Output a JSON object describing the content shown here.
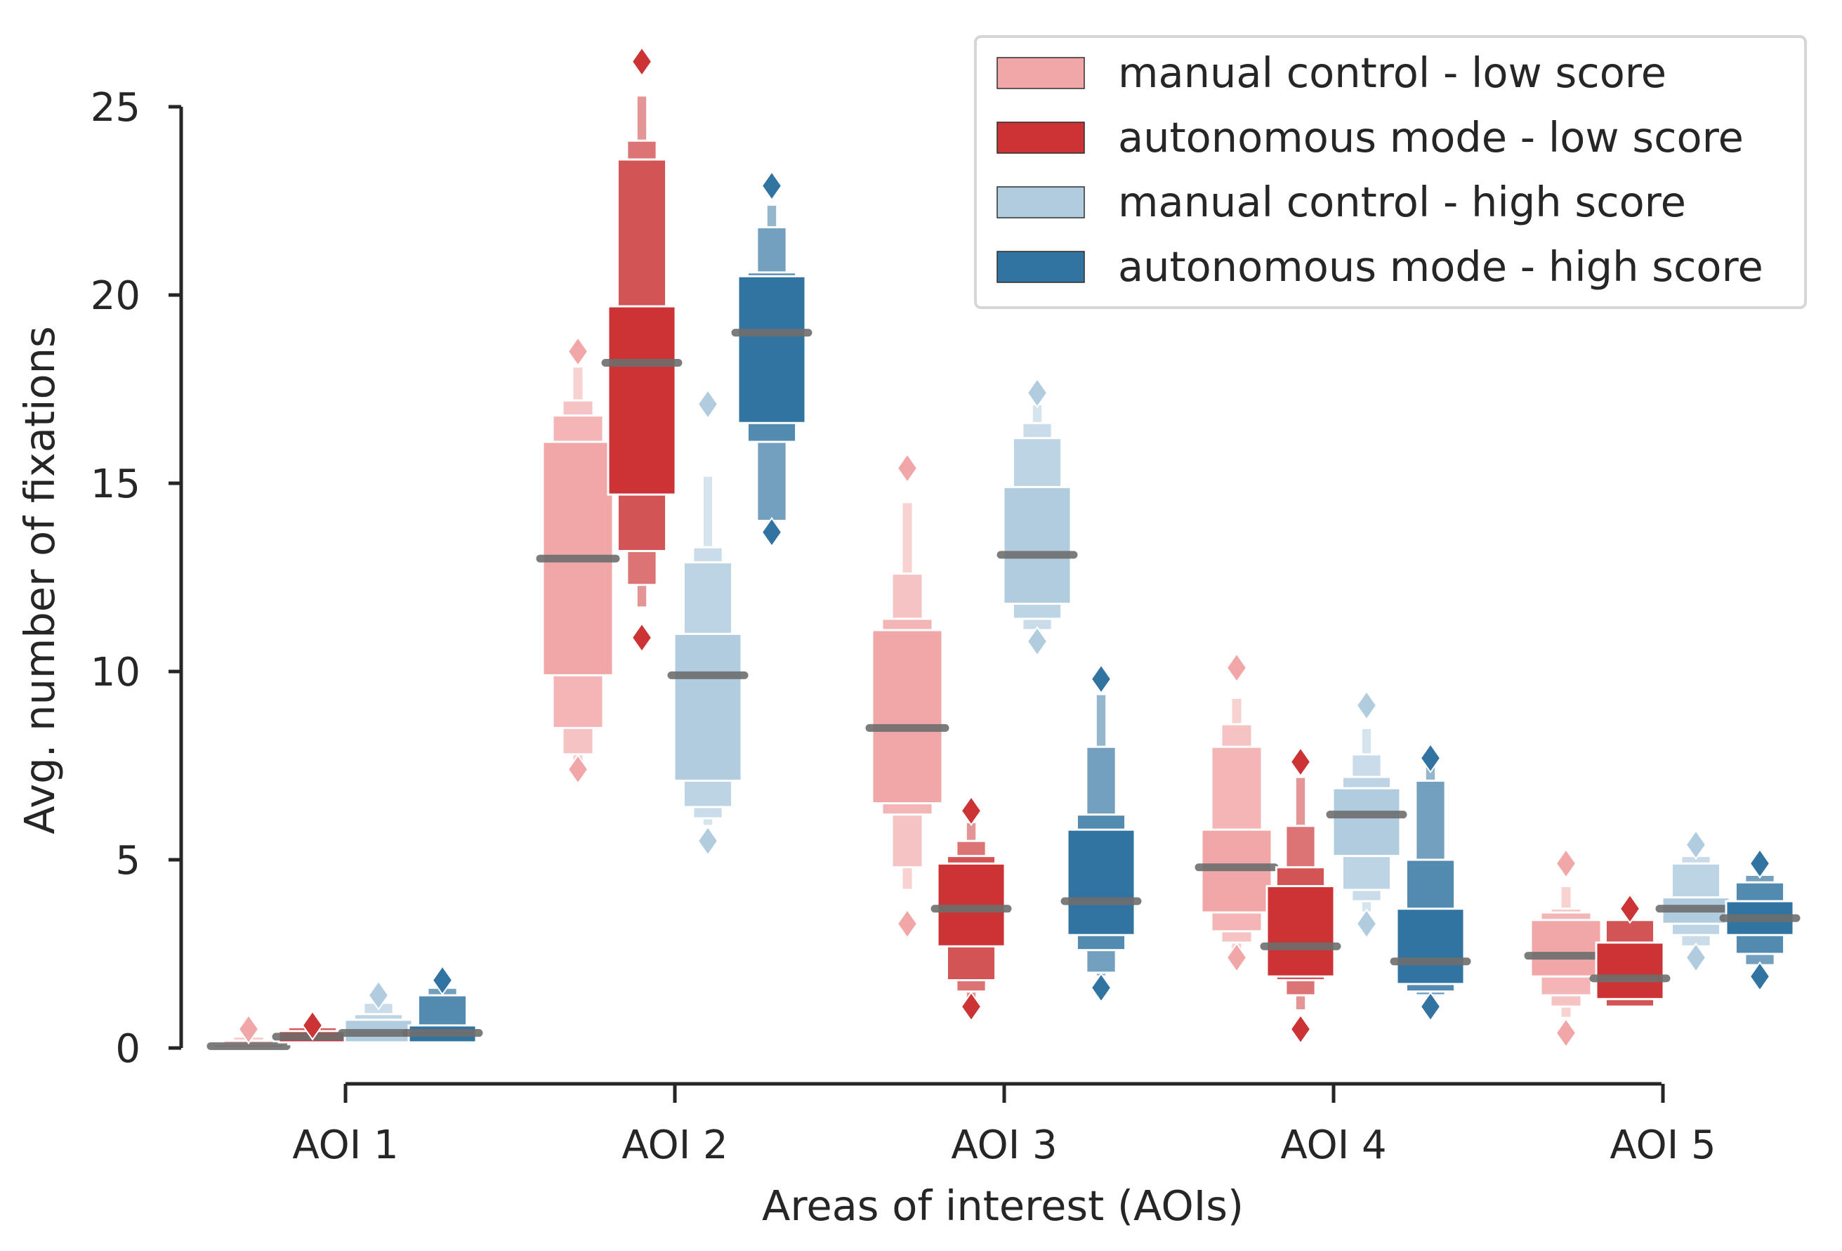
{
  "chart_data": {
    "type": "boxenplot",
    "xlabel": "Areas of interest (AOIs)",
    "ylabel": "Avg. number of fixations",
    "categories": [
      "AOI 1",
      "AOI 2",
      "AOI 3",
      "AOI 4",
      "AOI 5"
    ],
    "ylim": [
      0,
      26.5
    ],
    "yticks": [
      "0",
      "5",
      "10",
      "15",
      "20",
      "25"
    ],
    "legend": {
      "position": "top-right"
    },
    "series": [
      {
        "name": "manual control - low score",
        "color": "#f1a7a7",
        "boxes": [
          {
            "median": 0.05,
            "levels": [
              [
                0.0,
                0.1
              ],
              [
                0.0,
                0.2
              ],
              [
                0.0,
                0.3
              ]
            ],
            "outliers": [
              0.5
            ]
          },
          {
            "median": 13.0,
            "levels": [
              [
                9.9,
                16.1
              ],
              [
                8.5,
                16.8
              ],
              [
                7.8,
                17.2
              ],
              [
                7.6,
                18.1
              ]
            ],
            "outliers": [
              7.4,
              18.5
            ]
          },
          {
            "median": 8.5,
            "levels": [
              [
                6.5,
                11.1
              ],
              [
                6.2,
                11.4
              ],
              [
                4.8,
                12.6
              ],
              [
                4.2,
                14.5
              ]
            ],
            "outliers": [
              3.3,
              15.4
            ]
          },
          {
            "median": 4.8,
            "levels": [
              [
                3.6,
                5.8
              ],
              [
                3.1,
                8.0
              ],
              [
                2.8,
                8.6
              ],
              [
                2.6,
                9.3
              ]
            ],
            "outliers": [
              2.4,
              10.1
            ]
          },
          {
            "median": 2.45,
            "levels": [
              [
                1.9,
                3.4
              ],
              [
                1.4,
                3.6
              ],
              [
                1.1,
                3.7
              ],
              [
                0.8,
                4.3
              ]
            ],
            "outliers": [
              0.4,
              4.9
            ]
          }
        ]
      },
      {
        "name": "autonomous mode - low score",
        "color": "#cb3335",
        "boxes": [
          {
            "median": 0.3,
            "levels": [
              [
                0.15,
                0.45
              ],
              [
                0.1,
                0.55
              ]
            ],
            "outliers": [
              0.6
            ]
          },
          {
            "median": 18.2,
            "levels": [
              [
                14.7,
                19.7
              ],
              [
                13.2,
                23.6
              ],
              [
                12.3,
                24.1
              ],
              [
                11.7,
                25.3
              ]
            ],
            "outliers": [
              10.9,
              26.2
            ]
          },
          {
            "median": 3.7,
            "levels": [
              [
                2.7,
                4.9
              ],
              [
                1.8,
                5.1
              ],
              [
                1.5,
                5.5
              ],
              [
                1.3,
                6.0
              ]
            ],
            "outliers": [
              1.1,
              6.3
            ]
          },
          {
            "median": 2.7,
            "levels": [
              [
                1.9,
                4.3
              ],
              [
                1.8,
                4.8
              ],
              [
                1.4,
                5.9
              ],
              [
                1.0,
                7.2
              ]
            ],
            "outliers": [
              0.5,
              7.6
            ]
          },
          {
            "median": 1.85,
            "levels": [
              [
                1.3,
                2.8
              ],
              [
                1.1,
                3.4
              ]
            ],
            "outliers": [
              3.7
            ]
          }
        ]
      },
      {
        "name": "manual control - high score",
        "color": "#b1ccdf",
        "boxes": [
          {
            "median": 0.4,
            "levels": [
              [
                0.15,
                0.75
              ],
              [
                0.1,
                0.9
              ],
              [
                0.05,
                1.2
              ]
            ],
            "outliers": [
              1.4
            ]
          },
          {
            "median": 9.9,
            "levels": [
              [
                7.1,
                11.0
              ],
              [
                6.4,
                12.9
              ],
              [
                6.1,
                13.3
              ],
              [
                5.9,
                15.2
              ]
            ],
            "outliers": [
              5.5,
              17.1
            ]
          },
          {
            "median": 13.1,
            "levels": [
              [
                11.8,
                14.9
              ],
              [
                11.4,
                16.2
              ],
              [
                11.1,
                16.6
              ],
              [
                10.9,
                17.1
              ]
            ],
            "outliers": [
              10.8,
              17.4
            ]
          },
          {
            "median": 6.2,
            "levels": [
              [
                5.1,
                6.9
              ],
              [
                4.2,
                7.2
              ],
              [
                3.9,
                7.8
              ],
              [
                3.6,
                8.5
              ]
            ],
            "outliers": [
              3.3,
              9.1
            ]
          },
          {
            "median": 3.7,
            "levels": [
              [
                3.3,
                4.0
              ],
              [
                3.0,
                4.9
              ],
              [
                2.7,
                5.1
              ]
            ],
            "outliers": [
              2.4,
              5.4
            ]
          }
        ]
      },
      {
        "name": "autonomous mode - high score",
        "color": "#3274a1",
        "boxes": [
          {
            "median": 0.4,
            "levels": [
              [
                0.15,
                0.6
              ],
              [
                0.1,
                1.4
              ],
              [
                0.05,
                1.6
              ]
            ],
            "outliers": [
              1.8
            ]
          },
          {
            "median": 19.0,
            "levels": [
              [
                16.6,
                20.5
              ],
              [
                16.1,
                20.6
              ],
              [
                14.0,
                21.8
              ],
              [
                13.9,
                22.4
              ]
            ],
            "outliers": [
              13.7,
              22.9
            ]
          },
          {
            "median": 3.9,
            "levels": [
              [
                3.0,
                5.8
              ],
              [
                2.6,
                6.2
              ],
              [
                2.0,
                8.0
              ],
              [
                1.9,
                9.4
              ]
            ],
            "outliers": [
              1.6,
              9.8
            ]
          },
          {
            "median": 2.3,
            "levels": [
              [
                1.7,
                3.7
              ],
              [
                1.5,
                5.0
              ],
              [
                1.4,
                7.1
              ],
              [
                1.3,
                7.5
              ]
            ],
            "outliers": [
              1.1,
              7.7
            ]
          },
          {
            "median": 3.45,
            "levels": [
              [
                3.0,
                3.9
              ],
              [
                2.5,
                4.4
              ],
              [
                2.2,
                4.6
              ]
            ],
            "outliers": [
              1.9,
              4.9
            ]
          }
        ]
      }
    ]
  }
}
